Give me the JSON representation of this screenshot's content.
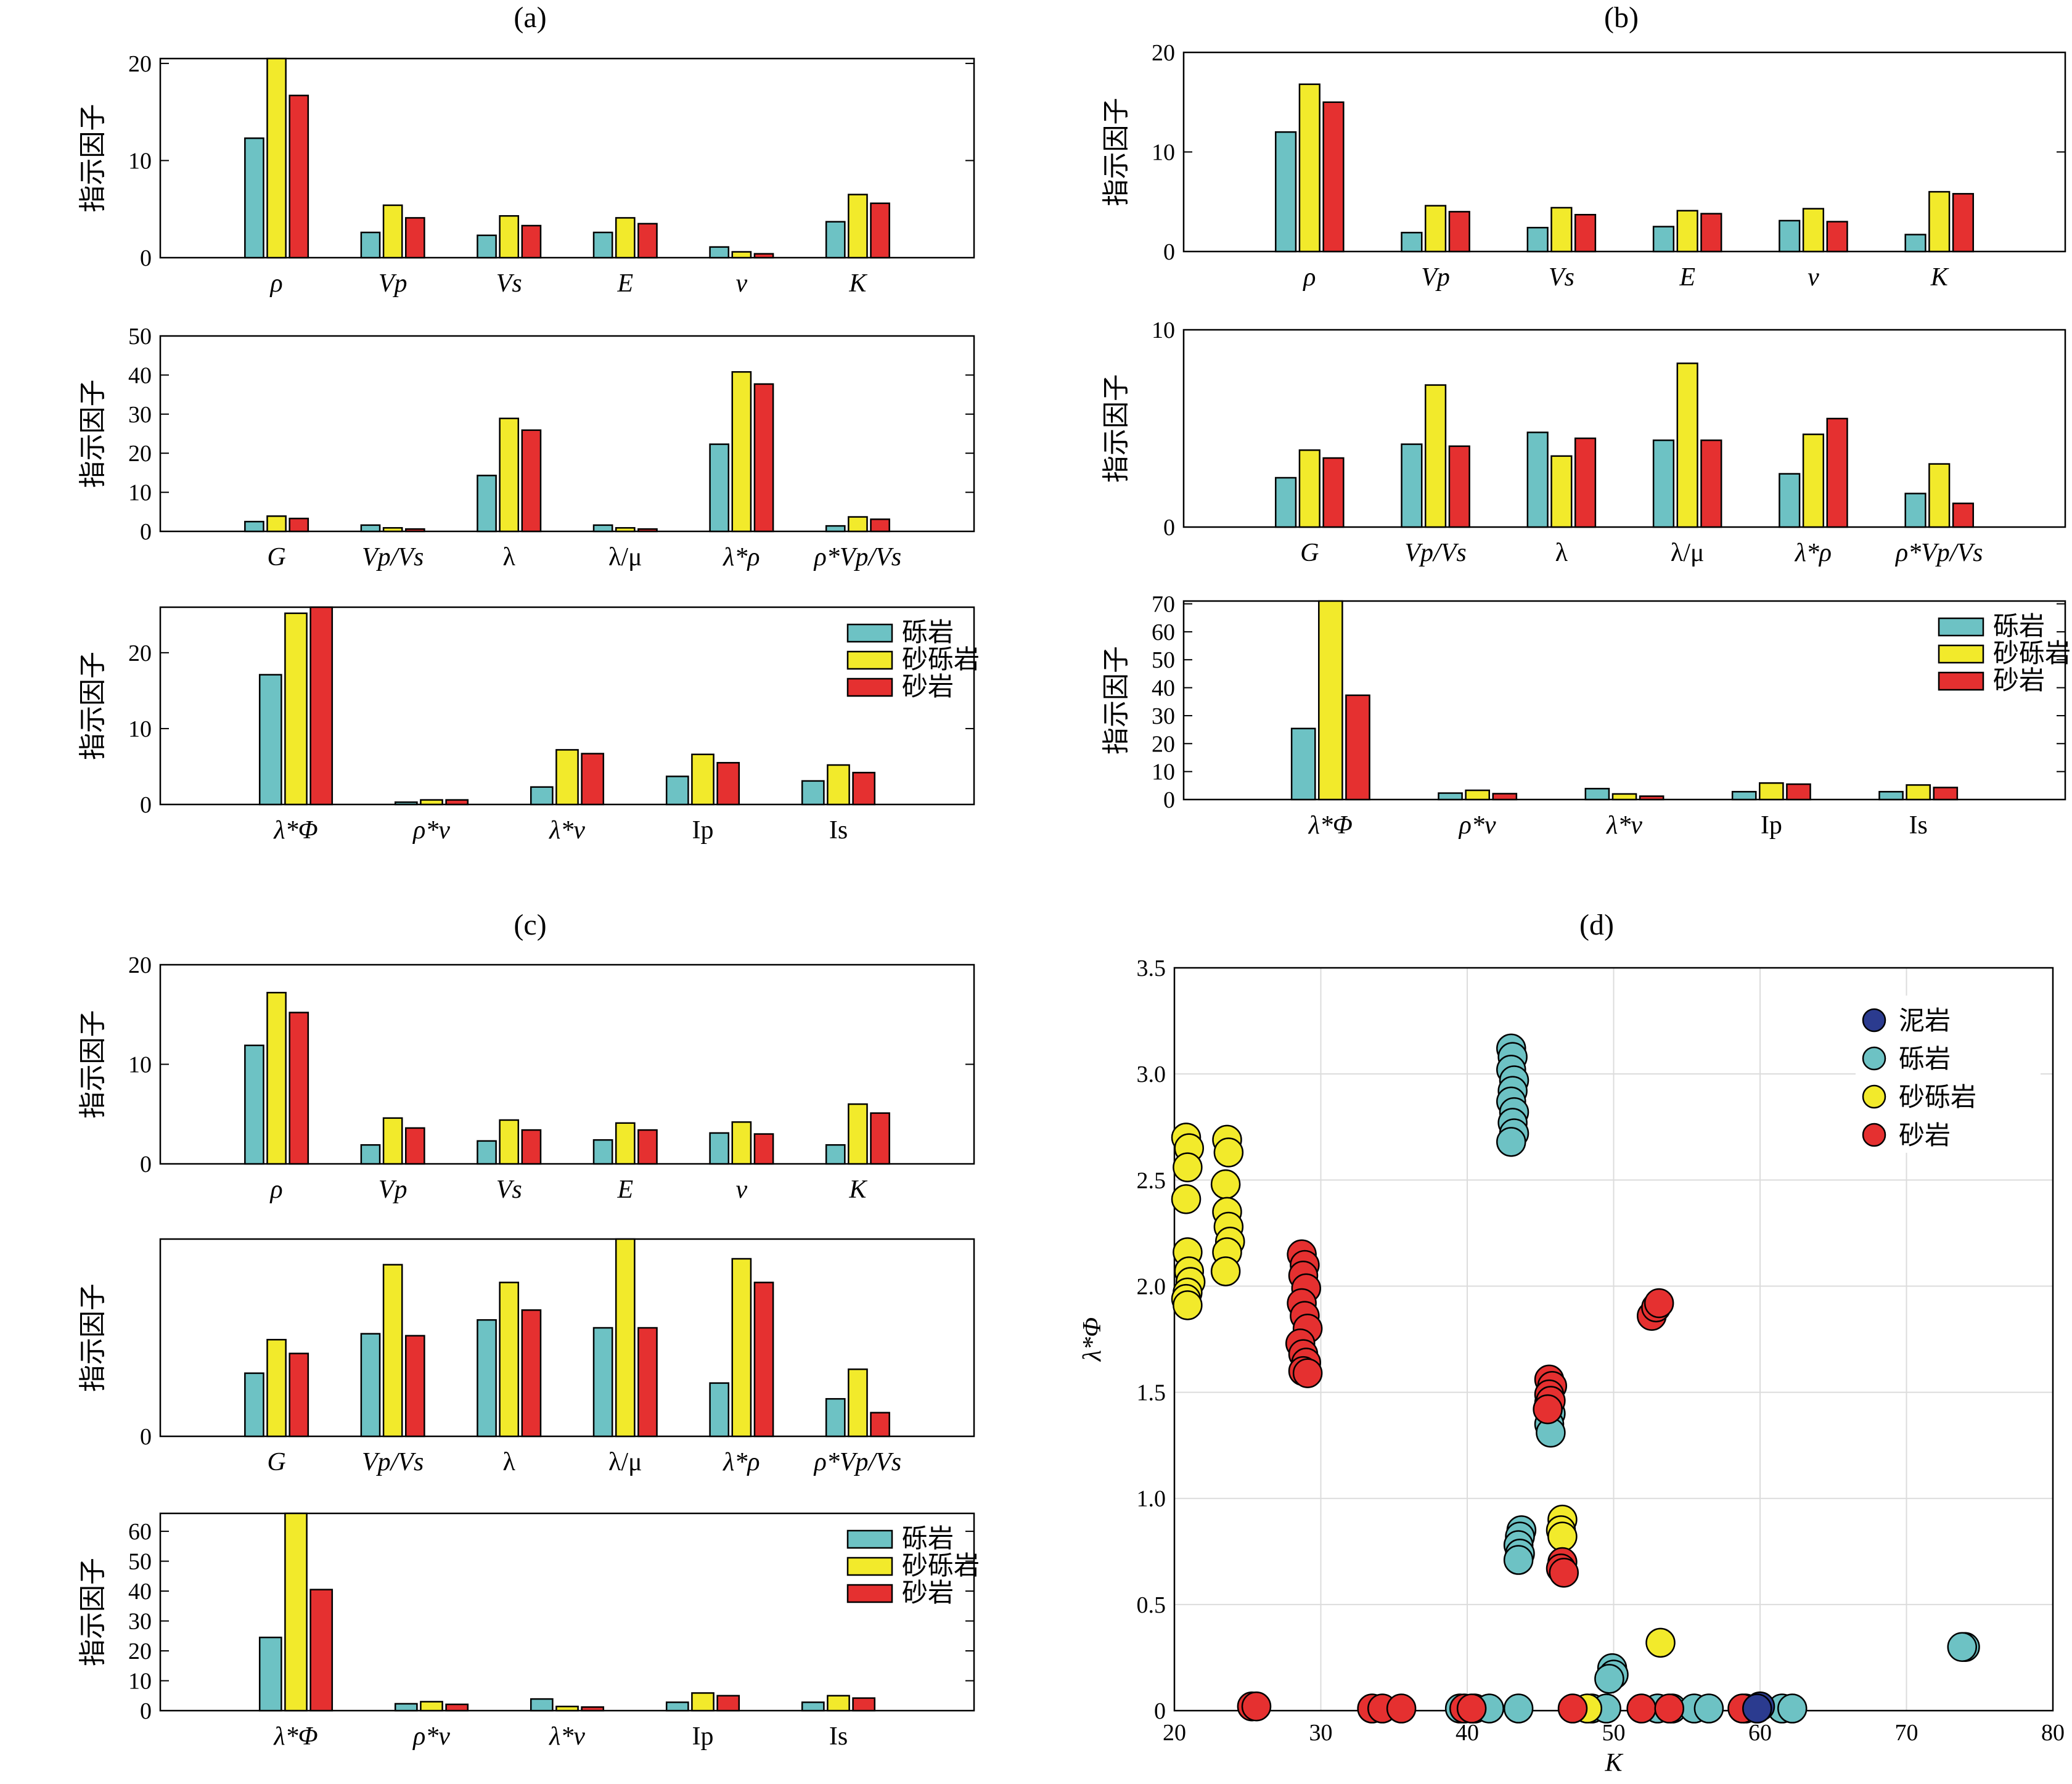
{
  "colors": {
    "gravel": "#6dc2c4",
    "sandy_gravel": "#f2ea2b",
    "sand": "#e53030",
    "mud": "#2b3b8f"
  },
  "legend_bar": [
    "砾岩",
    "砂砾岩",
    "砂岩"
  ],
  "legend_scatter": [
    "泥岩",
    "砾岩",
    "砂砾岩",
    "砂岩"
  ],
  "chart_data": [
    {
      "panel": "(a)",
      "row": 1,
      "type": "bar",
      "ylabel": "指示因子",
      "ylim": [
        0,
        20.5
      ],
      "yticks": [
        0,
        10,
        20
      ],
      "categories": [
        "ρ",
        "Vp",
        "Vs",
        "E",
        "v",
        "K"
      ],
      "series": [
        {
          "name": "砾岩",
          "values": [
            12.3,
            2.6,
            2.3,
            2.6,
            1.1,
            3.7
          ]
        },
        {
          "name": "砂砾岩",
          "values": [
            20.5,
            5.4,
            4.3,
            4.1,
            0.6,
            6.5
          ]
        },
        {
          "name": "砂岩",
          "values": [
            16.7,
            4.1,
            3.3,
            3.5,
            0.4,
            5.6
          ]
        }
      ]
    },
    {
      "panel": "(a)",
      "row": 2,
      "type": "bar",
      "ylabel": "指示因子",
      "ylim": [
        0,
        50
      ],
      "yticks": [
        0,
        10,
        20,
        30,
        40,
        50
      ],
      "categories": [
        "G",
        "Vp/Vs",
        "λ",
        "λ/μ",
        "λ*ρ",
        "ρ*Vp/Vs"
      ],
      "series": [
        {
          "name": "砾岩",
          "values": [
            2.5,
            1.6,
            14.3,
            1.6,
            22.3,
            1.4
          ]
        },
        {
          "name": "砂砾岩",
          "values": [
            3.9,
            0.9,
            28.9,
            0.9,
            40.8,
            3.7
          ]
        },
        {
          "name": "砂岩",
          "values": [
            3.3,
            0.6,
            25.9,
            0.6,
            37.7,
            3.1
          ]
        }
      ]
    },
    {
      "panel": "(a)",
      "row": 3,
      "type": "bar",
      "ylabel": "指示因子",
      "ylim": [
        0,
        26
      ],
      "yticks": [
        0,
        10,
        20
      ],
      "categories": [
        "λ*Φ",
        "ρ*v",
        "λ*v",
        "Ip",
        "Is"
      ],
      "series": [
        {
          "name": "砾岩",
          "values": [
            17.1,
            0.3,
            2.3,
            3.7,
            3.1
          ]
        },
        {
          "name": "砂砾岩",
          "values": [
            25.2,
            0.6,
            7.2,
            6.6,
            5.2
          ]
        },
        {
          "name": "砂岩",
          "values": [
            26,
            0.6,
            6.7,
            5.5,
            4.2
          ]
        }
      ]
    },
    {
      "panel": "(b)",
      "row": 1,
      "type": "bar",
      "ylabel": "指示因子",
      "ylim": [
        0,
        20
      ],
      "yticks": [
        0,
        10,
        20
      ],
      "categories": [
        "ρ",
        "Vp",
        "Vs",
        "E",
        "v",
        "K"
      ],
      "series": [
        {
          "name": "砾岩",
          "values": [
            12.0,
            1.9,
            2.4,
            2.5,
            3.1,
            1.7
          ]
        },
        {
          "name": "砂砾岩",
          "values": [
            16.8,
            4.6,
            4.4,
            4.1,
            4.3,
            6.0
          ]
        },
        {
          "name": "砂岩",
          "values": [
            15.0,
            4.0,
            3.7,
            3.8,
            3.0,
            5.8
          ]
        }
      ]
    },
    {
      "panel": "(b)",
      "row": 2,
      "type": "bar",
      "ylabel": "指示因子",
      "ylim": [
        0,
        10
      ],
      "yticks": [
        0,
        10
      ],
      "categories": [
        "G",
        "Vp/Vs",
        "λ",
        "λ/μ",
        "λ*ρ",
        "ρ*Vp/Vs"
      ],
      "series": [
        {
          "name": "砾岩",
          "values": [
            2.5,
            4.2,
            4.8,
            4.4,
            2.7,
            1.7
          ]
        },
        {
          "name": "砂砾岩",
          "values": [
            3.9,
            7.2,
            3.6,
            8.3,
            4.7,
            3.2
          ]
        },
        {
          "name": "砂岩",
          "values": [
            3.5,
            4.1,
            4.5,
            4.4,
            5.5,
            1.2
          ]
        }
      ]
    },
    {
      "panel": "(b)",
      "row": 3,
      "type": "bar",
      "ylabel": "指示因子",
      "ylim": [
        0,
        71
      ],
      "yticks": [
        0,
        10,
        20,
        30,
        40,
        50,
        60,
        70
      ],
      "categories": [
        "λ*Φ",
        "ρ*v",
        "λ*v",
        "Ip",
        "Is"
      ],
      "series": [
        {
          "name": "砾岩",
          "values": [
            25.4,
            2.3,
            3.9,
            2.8,
            2.8
          ]
        },
        {
          "name": "砂砾岩",
          "values": [
            71,
            3.3,
            2.0,
            5.9,
            5.2
          ]
        },
        {
          "name": "砂岩",
          "values": [
            37.3,
            2.1,
            1.2,
            5.5,
            4.3
          ]
        }
      ]
    },
    {
      "panel": "(c)",
      "row": 1,
      "type": "bar",
      "ylabel": "指示因子",
      "ylim": [
        0,
        20
      ],
      "yticks": [
        0,
        10,
        20
      ],
      "categories": [
        "ρ",
        "Vp",
        "Vs",
        "E",
        "v",
        "K"
      ],
      "series": [
        {
          "name": "砾岩",
          "values": [
            11.9,
            1.9,
            2.3,
            2.4,
            3.1,
            1.9
          ]
        },
        {
          "name": "砂砾岩",
          "values": [
            17.2,
            4.6,
            4.4,
            4.1,
            4.2,
            6.0
          ]
        },
        {
          "name": "砂岩",
          "values": [
            15.2,
            3.6,
            3.4,
            3.4,
            3.0,
            5.1
          ]
        }
      ]
    },
    {
      "panel": "(c)",
      "row": 2,
      "type": "bar",
      "ylabel": "指示因子",
      "ylim": [
        0,
        10
      ],
      "yticks": [
        0
      ],
      "categories": [
        "G",
        "Vp/Vs",
        "λ",
        "λ/μ",
        "λ*ρ",
        "ρ*Vp/Vs"
      ],
      "series": [
        {
          "name": "砾岩",
          "values": [
            3.2,
            5.2,
            5.9,
            5.5,
            2.7,
            1.9
          ]
        },
        {
          "name": "砂砾岩",
          "values": [
            4.9,
            8.7,
            7.8,
            10,
            9.0,
            3.4
          ]
        },
        {
          "name": "砂岩",
          "values": [
            4.2,
            5.1,
            6.4,
            5.5,
            7.8,
            1.2
          ]
        }
      ]
    },
    {
      "panel": "(c)",
      "row": 3,
      "type": "bar",
      "ylabel": "指示因子",
      "ylim": [
        0,
        66
      ],
      "yticks": [
        0,
        10,
        20,
        30,
        40,
        50,
        60
      ],
      "categories": [
        "λ*Φ",
        "ρ*v",
        "λ*v",
        "Ip",
        "Is"
      ],
      "series": [
        {
          "name": "砾岩",
          "values": [
            24.5,
            2.3,
            3.9,
            2.8,
            2.8
          ]
        },
        {
          "name": "砂砾岩",
          "values": [
            66,
            3.0,
            1.4,
            5.9,
            5.0
          ]
        },
        {
          "name": "砂岩",
          "values": [
            40.5,
            2.1,
            1.2,
            5.0,
            4.2
          ]
        }
      ]
    },
    {
      "panel": "(d)",
      "type": "scatter",
      "xlabel": "K",
      "ylabel": "λ*Φ",
      "xlim": [
        20,
        80
      ],
      "ylim": [
        0,
        3.5
      ],
      "xticks": [
        20,
        30,
        40,
        50,
        60,
        70,
        80
      ],
      "yticks": [
        0,
        0.5,
        1.0,
        1.5,
        2.0,
        2.5,
        3.0,
        3.5
      ],
      "ytick_labels": [
        "0",
        "0.5",
        "1.0",
        "1.5",
        "2.0",
        "2.5",
        "3.0",
        "3.5"
      ],
      "grid": true,
      "legend_position": "top-right",
      "series": [
        {
          "name": "泥岩",
          "points": [
            [
              60.0,
              0.02
            ],
            [
              59.8,
              0.01
            ]
          ]
        },
        {
          "name": "砾岩",
          "points": [
            [
              43.0,
              3.12
            ],
            [
              43.1,
              3.08
            ],
            [
              43.0,
              3.02
            ],
            [
              43.2,
              2.97
            ],
            [
              43.1,
              2.92
            ],
            [
              43.0,
              2.87
            ],
            [
              43.2,
              2.82
            ],
            [
              43.1,
              2.77
            ],
            [
              43.2,
              2.72
            ],
            [
              43.0,
              2.68
            ],
            [
              45.6,
              1.45
            ],
            [
              45.7,
              1.4
            ],
            [
              45.6,
              1.35
            ],
            [
              45.7,
              1.31
            ],
            [
              43.7,
              0.85
            ],
            [
              43.6,
              0.82
            ],
            [
              43.5,
              0.78
            ],
            [
              43.6,
              0.74
            ],
            [
              43.5,
              0.71
            ],
            [
              49.9,
              0.2
            ],
            [
              50.0,
              0.17
            ],
            [
              49.7,
              0.15
            ],
            [
              74.0,
              0.3
            ],
            [
              73.8,
              0.3
            ],
            [
              39.5,
              0.01
            ],
            [
              40.5,
              0.01
            ],
            [
              41.5,
              0.01
            ],
            [
              43.5,
              0.01
            ],
            [
              48.5,
              0.01
            ],
            [
              49.5,
              0.01
            ],
            [
              53.0,
              0.01
            ],
            [
              54.0,
              0.01
            ],
            [
              55.5,
              0.01
            ],
            [
              56.5,
              0.01
            ],
            [
              59.0,
              0.01
            ],
            [
              61.5,
              0.01
            ],
            [
              62.2,
              0.01
            ]
          ]
        },
        {
          "name": "砂砾岩",
          "points": [
            [
              20.8,
              2.7
            ],
            [
              21.0,
              2.65
            ],
            [
              20.9,
              2.56
            ],
            [
              20.8,
              2.41
            ],
            [
              20.9,
              2.16
            ],
            [
              21.0,
              2.07
            ],
            [
              21.1,
              2.02
            ],
            [
              20.9,
              1.97
            ],
            [
              20.8,
              1.94
            ],
            [
              20.9,
              1.91
            ],
            [
              23.6,
              2.69
            ],
            [
              23.7,
              2.63
            ],
            [
              23.5,
              2.48
            ],
            [
              23.6,
              2.35
            ],
            [
              23.7,
              2.28
            ],
            [
              23.8,
              2.21
            ],
            [
              23.6,
              2.16
            ],
            [
              23.5,
              2.07
            ],
            [
              46.5,
              0.9
            ],
            [
              46.4,
              0.85
            ],
            [
              46.5,
              0.82
            ],
            [
              53.2,
              0.32
            ],
            [
              48.2,
              0.01
            ]
          ]
        },
        {
          "name": "砂岩",
          "points": [
            [
              28.7,
              2.15
            ],
            [
              28.9,
              2.1
            ],
            [
              28.8,
              2.05
            ],
            [
              29.0,
              1.99
            ],
            [
              28.7,
              1.92
            ],
            [
              28.9,
              1.86
            ],
            [
              29.1,
              1.8
            ],
            [
              28.6,
              1.73
            ],
            [
              28.8,
              1.68
            ],
            [
              29.0,
              1.64
            ],
            [
              28.8,
              1.6
            ],
            [
              29.1,
              1.59
            ],
            [
              52.6,
              1.86
            ],
            [
              52.9,
              1.9
            ],
            [
              53.1,
              1.92
            ],
            [
              45.6,
              1.56
            ],
            [
              45.8,
              1.53
            ],
            [
              45.6,
              1.49
            ],
            [
              45.7,
              1.46
            ],
            [
              45.5,
              1.42
            ],
            [
              46.5,
              0.7
            ],
            [
              46.4,
              0.67
            ],
            [
              46.6,
              0.65
            ],
            [
              25.3,
              0.02
            ],
            [
              25.6,
              0.02
            ],
            [
              33.5,
              0.01
            ],
            [
              34.2,
              0.01
            ],
            [
              35.5,
              0.01
            ],
            [
              39.8,
              0.01
            ],
            [
              40.3,
              0.01
            ],
            [
              47.2,
              0.01
            ],
            [
              51.9,
              0.01
            ],
            [
              53.8,
              0.01
            ],
            [
              58.8,
              0.01
            ]
          ]
        }
      ]
    }
  ]
}
